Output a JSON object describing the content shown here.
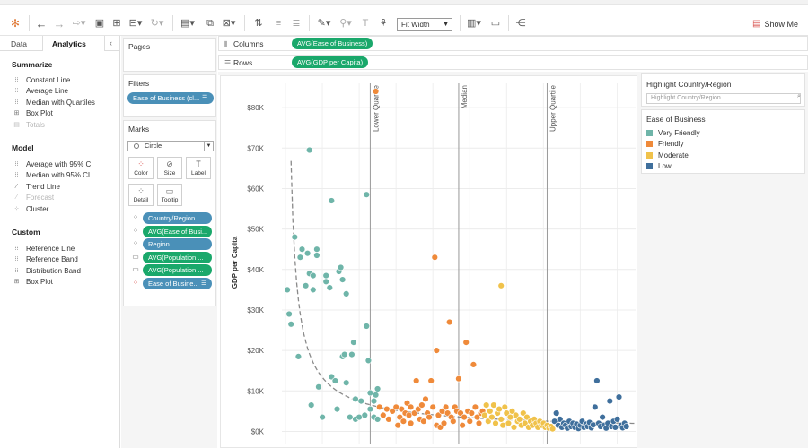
{
  "toolbar": {
    "fit_mode": "Fit Width",
    "show_me_label": "Show Me"
  },
  "left_panel": {
    "tabs": {
      "data": "Data",
      "analytics": "Analytics"
    },
    "summarize": {
      "title": "Summarize",
      "items": [
        "Constant Line",
        "Average Line",
        "Median with Quartiles",
        "Box Plot",
        "Totals"
      ]
    },
    "model": {
      "title": "Model",
      "items": [
        "Average with 95% CI",
        "Median with 95% CI",
        "Trend Line",
        "Forecast",
        "Cluster"
      ]
    },
    "custom": {
      "title": "Custom",
      "items": [
        "Reference Line",
        "Reference Band",
        "Distribution Band",
        "Box Plot"
      ]
    }
  },
  "cards": {
    "pages_title": "Pages",
    "filters_title": "Filters",
    "filter_pill": "Ease of Business (cl...",
    "marks_title": "Marks",
    "mark_type": "Circle",
    "mark_buttons": [
      "Color",
      "Size",
      "Label",
      "Detail",
      "Tooltip"
    ],
    "mark_fields": [
      "Country/Region",
      "AVG(Ease of Busi...",
      "Region",
      "AVG(Population ...",
      "AVG(Population ...",
      "Ease of Busine..."
    ]
  },
  "shelves": {
    "columns_label": "Columns",
    "columns_pill": "AVG(Ease of Business)",
    "rows_label": "Rows",
    "rows_pill": "AVG(GDP per Capita)"
  },
  "right_panel": {
    "highlight_title": "Highlight Country/Region",
    "highlight_placeholder": "Highlight Country/Region",
    "legend_title": "Ease of Business",
    "legend_items": [
      {
        "label": "Very Friendly",
        "color": "#6fb5a9"
      },
      {
        "label": "Friendly",
        "color": "#ef8a3a"
      },
      {
        "label": "Moderate",
        "color": "#f0c24b"
      },
      {
        "label": "Low",
        "color": "#3f6f9c"
      }
    ]
  },
  "chart_data": {
    "type": "scatter",
    "ylabel": "GDP per Capita",
    "xlabel": "",
    "y_ticks": [
      "$0K",
      "$10K",
      "$20K",
      "$30K",
      "$40K",
      "$50K",
      "$60K",
      "$70K",
      "$80K"
    ],
    "ylim": [
      -3000,
      86000
    ],
    "xlim": [
      0,
      190
    ],
    "grid": true,
    "reference_lines": [
      {
        "label": "Lower Quartile",
        "x": 46
      },
      {
        "label": "Median",
        "x": 94
      },
      {
        "label": "Upper Quartile",
        "x": 142
      }
    ],
    "trend_line": {
      "type": "power",
      "a": 170000,
      "b": -0.85,
      "style": "dashed",
      "x_start": 1,
      "x_end": 190
    },
    "series": [
      {
        "name": "Very Friendly",
        "color": "#6fb5a9",
        "points": [
          [
            1,
            35000
          ],
          [
            2,
            29000
          ],
          [
            3,
            26500
          ],
          [
            5,
            48000
          ],
          [
            7,
            18500
          ],
          [
            8,
            43000
          ],
          [
            9,
            45000
          ],
          [
            11,
            36000
          ],
          [
            12,
            44000
          ],
          [
            13,
            69500
          ],
          [
            13,
            39000
          ],
          [
            14,
            6500
          ],
          [
            15,
            38500
          ],
          [
            15,
            35000
          ],
          [
            17,
            43500
          ],
          [
            17,
            45000
          ],
          [
            18,
            11000
          ],
          [
            20,
            3500
          ],
          [
            22,
            38500
          ],
          [
            22,
            37000
          ],
          [
            24,
            35500
          ],
          [
            25,
            13500
          ],
          [
            25,
            57000
          ],
          [
            27,
            12500
          ],
          [
            28,
            5500
          ],
          [
            29,
            39500
          ],
          [
            30,
            40500
          ],
          [
            31,
            18500
          ],
          [
            31,
            37500
          ],
          [
            32,
            19000
          ],
          [
            33,
            34000
          ],
          [
            33,
            12000
          ],
          [
            35,
            3500
          ],
          [
            36,
            19000
          ],
          [
            37,
            22000
          ],
          [
            38,
            8000
          ],
          [
            38,
            3000
          ],
          [
            40,
            3500
          ],
          [
            41,
            7500
          ],
          [
            43,
            4000
          ],
          [
            44,
            58500
          ],
          [
            44,
            26000
          ],
          [
            45,
            17500
          ],
          [
            46,
            5500
          ],
          [
            46,
            9500
          ],
          [
            48,
            7500
          ],
          [
            48,
            3500
          ],
          [
            49,
            9000
          ],
          [
            50,
            3000
          ],
          [
            50,
            10500
          ]
        ]
      },
      {
        "name": "Friendly",
        "color": "#ef8a3a",
        "points": [
          [
            51,
            6000
          ],
          [
            53,
            4000
          ],
          [
            55,
            5500
          ],
          [
            56,
            3000
          ],
          [
            58,
            5000
          ],
          [
            60,
            6000
          ],
          [
            61,
            1500
          ],
          [
            62,
            3500
          ],
          [
            63,
            5500
          ],
          [
            64,
            2500
          ],
          [
            65,
            4500
          ],
          [
            66,
            7000
          ],
          [
            67,
            4000
          ],
          [
            68,
            6000
          ],
          [
            68,
            2000
          ],
          [
            70,
            4500
          ],
          [
            71,
            12500
          ],
          [
            72,
            5500
          ],
          [
            73,
            3000
          ],
          [
            74,
            6500
          ],
          [
            75,
            2500
          ],
          [
            76,
            8000
          ],
          [
            77,
            4500
          ],
          [
            78,
            3500
          ],
          [
            79,
            12500
          ],
          [
            80,
            6000
          ],
          [
            81,
            43000
          ],
          [
            82,
            20000
          ],
          [
            82,
            1500
          ],
          [
            83,
            4000
          ],
          [
            84,
            1000
          ],
          [
            85,
            5000
          ],
          [
            86,
            2000
          ],
          [
            87,
            6000
          ],
          [
            88,
            4500
          ],
          [
            89,
            27000
          ],
          [
            90,
            3500
          ],
          [
            91,
            2500
          ],
          [
            92,
            6000
          ],
          [
            93,
            5000
          ],
          [
            94,
            13000
          ],
          [
            95,
            4500
          ],
          [
            96,
            1500
          ],
          [
            97,
            3500
          ],
          [
            98,
            22000
          ],
          [
            99,
            5000
          ],
          [
            100,
            2500
          ],
          [
            101,
            4500
          ],
          [
            102,
            16500
          ],
          [
            103,
            6000
          ],
          [
            104,
            3500
          ],
          [
            105,
            2000
          ],
          [
            106,
            4500
          ],
          [
            107,
            5000
          ],
          [
            49,
            84000
          ]
        ]
      },
      {
        "name": "Moderate",
        "color": "#f0c24b",
        "points": [
          [
            108,
            4000
          ],
          [
            109,
            6500
          ],
          [
            110,
            2500
          ],
          [
            111,
            5000
          ],
          [
            112,
            3500
          ],
          [
            113,
            6500
          ],
          [
            114,
            2000
          ],
          [
            115,
            4500
          ],
          [
            116,
            5500
          ],
          [
            117,
            3000
          ],
          [
            118,
            1500
          ],
          [
            119,
            6000
          ],
          [
            120,
            4500
          ],
          [
            121,
            2000
          ],
          [
            122,
            3500
          ],
          [
            123,
            5000
          ],
          [
            124,
            1000
          ],
          [
            125,
            4000
          ],
          [
            126,
            2500
          ],
          [
            127,
            3000
          ],
          [
            128,
            1500
          ],
          [
            129,
            4500
          ],
          [
            130,
            2000
          ],
          [
            131,
            3500
          ],
          [
            132,
            1000
          ],
          [
            133,
            2500
          ],
          [
            134,
            1500
          ],
          [
            135,
            3000
          ],
          [
            136,
            2000
          ],
          [
            137,
            1000
          ],
          [
            138,
            2500
          ],
          [
            139,
            1500
          ],
          [
            140,
            2000
          ],
          [
            141,
            1000
          ],
          [
            142,
            1500
          ],
          [
            143,
            800
          ],
          [
            144,
            1200
          ],
          [
            145,
            600
          ],
          [
            117,
            36000
          ]
        ]
      },
      {
        "name": "Low",
        "color": "#3f6f9c",
        "points": [
          [
            146,
            2500
          ],
          [
            147,
            4500
          ],
          [
            148,
            1500
          ],
          [
            149,
            3000
          ],
          [
            150,
            1000
          ],
          [
            151,
            2000
          ],
          [
            152,
            1500
          ],
          [
            153,
            800
          ],
          [
            154,
            2500
          ],
          [
            155,
            1200
          ],
          [
            156,
            2000
          ],
          [
            157,
            1000
          ],
          [
            158,
            1800
          ],
          [
            159,
            700
          ],
          [
            160,
            1500
          ],
          [
            161,
            2500
          ],
          [
            162,
            1000
          ],
          [
            163,
            1800
          ],
          [
            164,
            1200
          ],
          [
            165,
            2200
          ],
          [
            166,
            900
          ],
          [
            167,
            1600
          ],
          [
            168,
            6000
          ],
          [
            169,
            12500
          ],
          [
            170,
            2000
          ],
          [
            171,
            1200
          ],
          [
            172,
            3500
          ],
          [
            173,
            1500
          ],
          [
            174,
            800
          ],
          [
            175,
            2000
          ],
          [
            176,
            7500
          ],
          [
            177,
            1200
          ],
          [
            178,
            2500
          ],
          [
            179,
            1000
          ],
          [
            180,
            3000
          ],
          [
            181,
            8500
          ],
          [
            182,
            1500
          ],
          [
            183,
            900
          ],
          [
            184,
            2000
          ],
          [
            185,
            1200
          ]
        ]
      }
    ]
  }
}
